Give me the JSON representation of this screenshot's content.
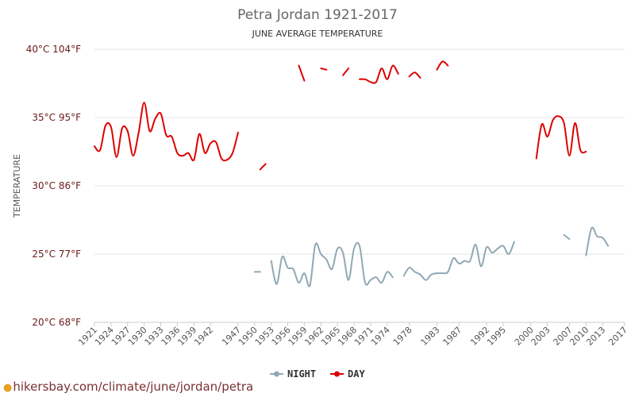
{
  "chart_data": {
    "type": "line",
    "title": "Petra Jordan 1921-2017",
    "subtitle": "JUNE AVERAGE TEMPERATURE",
    "ylabel": "TEMPERATURE",
    "ylim": [
      20,
      40
    ],
    "xlim": [
      1921,
      2017
    ],
    "y_ticks": [
      {
        "value": 40,
        "label": "40°C 104°F"
      },
      {
        "value": 35,
        "label": "35°C 95°F"
      },
      {
        "value": 30,
        "label": "30°C 86°F"
      },
      {
        "value": 25,
        "label": "25°C 77°F"
      },
      {
        "value": 20,
        "label": "20°C 68°F"
      }
    ],
    "x_ticks": [
      1921,
      1924,
      1927,
      1930,
      1933,
      1936,
      1939,
      1942,
      1947,
      1950,
      1953,
      1956,
      1959,
      1962,
      1965,
      1968,
      1971,
      1974,
      1978,
      1983,
      1987,
      1992,
      1995,
      2000,
      2003,
      2007,
      2010,
      2013,
      2017
    ],
    "grid": true,
    "legend_position": "bottom-center",
    "series": [
      {
        "name": "NIGHT",
        "color": "#90a8b4",
        "segments": [
          [
            [
              1950,
              23.7
            ],
            [
              1951,
              23.7
            ]
          ],
          [
            [
              1953,
              24.5
            ],
            [
              1954,
              22.8
            ],
            [
              1955,
              24.8
            ],
            [
              1956,
              24.0
            ],
            [
              1957,
              23.9
            ],
            [
              1958,
              22.9
            ],
            [
              1959,
              23.6
            ],
            [
              1960,
              22.7
            ],
            [
              1961,
              25.7
            ],
            [
              1962,
              25.0
            ],
            [
              1963,
              24.6
            ],
            [
              1964,
              23.9
            ],
            [
              1965,
              25.4
            ],
            [
              1966,
              25.1
            ],
            [
              1967,
              23.1
            ],
            [
              1968,
              25.4
            ],
            [
              1969,
              25.6
            ],
            [
              1970,
              22.9
            ],
            [
              1971,
              23.1
            ],
            [
              1972,
              23.3
            ],
            [
              1973,
              22.9
            ],
            [
              1974,
              23.7
            ],
            [
              1975,
              23.3
            ]
          ],
          [
            [
              1977,
              23.4
            ],
            [
              1978,
              24.0
            ],
            [
              1979,
              23.7
            ],
            [
              1980,
              23.5
            ],
            [
              1981,
              23.1
            ],
            [
              1982,
              23.5
            ],
            [
              1983,
              23.6
            ],
            [
              1984,
              23.6
            ],
            [
              1985,
              23.7
            ],
            [
              1986,
              24.7
            ],
            [
              1987,
              24.3
            ],
            [
              1988,
              24.5
            ],
            [
              1989,
              24.5
            ],
            [
              1990,
              25.7
            ],
            [
              1991,
              24.1
            ],
            [
              1992,
              25.5
            ],
            [
              1993,
              25.1
            ],
            [
              1994,
              25.4
            ],
            [
              1995,
              25.6
            ],
            [
              1996,
              25.0
            ],
            [
              1997,
              25.9
            ]
          ],
          [
            [
              2006,
              26.4
            ],
            [
              2007,
              26.1
            ]
          ],
          [
            [
              2010,
              24.9
            ],
            [
              2011,
              26.9
            ],
            [
              2012,
              26.3
            ],
            [
              2013,
              26.2
            ],
            [
              2014,
              25.6
            ]
          ]
        ]
      },
      {
        "name": "DAY",
        "color": "#dd0000",
        "segments": [
          [
            [
              1921,
              32.9
            ],
            [
              1922,
              32.6
            ],
            [
              1923,
              34.4
            ],
            [
              1924,
              34.3
            ],
            [
              1925,
              32.1
            ],
            [
              1926,
              34.2
            ],
            [
              1927,
              34.0
            ],
            [
              1928,
              32.2
            ],
            [
              1929,
              33.9
            ],
            [
              1930,
              36.1
            ],
            [
              1931,
              34.0
            ],
            [
              1932,
              34.9
            ],
            [
              1933,
              35.3
            ],
            [
              1934,
              33.7
            ],
            [
              1935,
              33.6
            ],
            [
              1936,
              32.4
            ],
            [
              1937,
              32.2
            ],
            [
              1938,
              32.4
            ],
            [
              1939,
              31.9
            ],
            [
              1940,
              33.8
            ],
            [
              1941,
              32.4
            ],
            [
              1942,
              33.1
            ],
            [
              1943,
              33.2
            ],
            [
              1944,
              32.0
            ],
            [
              1945,
              31.9
            ],
            [
              1946,
              32.4
            ],
            [
              1947,
              33.9
            ]
          ],
          [
            [
              1951,
              31.2
            ],
            [
              1952,
              31.6
            ]
          ],
          [
            [
              1958,
              38.8
            ],
            [
              1959,
              37.7
            ]
          ],
          [
            [
              1962,
              38.6
            ],
            [
              1963,
              38.5
            ]
          ],
          [
            [
              1966,
              38.1
            ],
            [
              1967,
              38.6
            ]
          ],
          [
            [
              1969,
              37.8
            ],
            [
              1970,
              37.8
            ],
            [
              1971,
              37.6
            ],
            [
              1972,
              37.6
            ],
            [
              1973,
              38.6
            ],
            [
              1974,
              37.8
            ],
            [
              1975,
              38.8
            ],
            [
              1976,
              38.2
            ]
          ],
          [
            [
              1978,
              38.0
            ],
            [
              1979,
              38.3
            ],
            [
              1980,
              37.9
            ]
          ],
          [
            [
              1983,
              38.5
            ],
            [
              1984,
              39.1
            ],
            [
              1985,
              38.8
            ]
          ],
          [
            [
              2001,
              32.0
            ],
            [
              2002,
              34.5
            ],
            [
              2003,
              33.6
            ],
            [
              2004,
              34.8
            ],
            [
              2005,
              35.1
            ],
            [
              2006,
              34.6
            ],
            [
              2007,
              32.2
            ],
            [
              2008,
              34.6
            ],
            [
              2009,
              32.6
            ],
            [
              2010,
              32.5
            ]
          ]
        ]
      }
    ]
  },
  "watermark": {
    "text": "hikersbay.com/climate/june/jordan/petra",
    "pin_icon": "map-pin-icon"
  }
}
